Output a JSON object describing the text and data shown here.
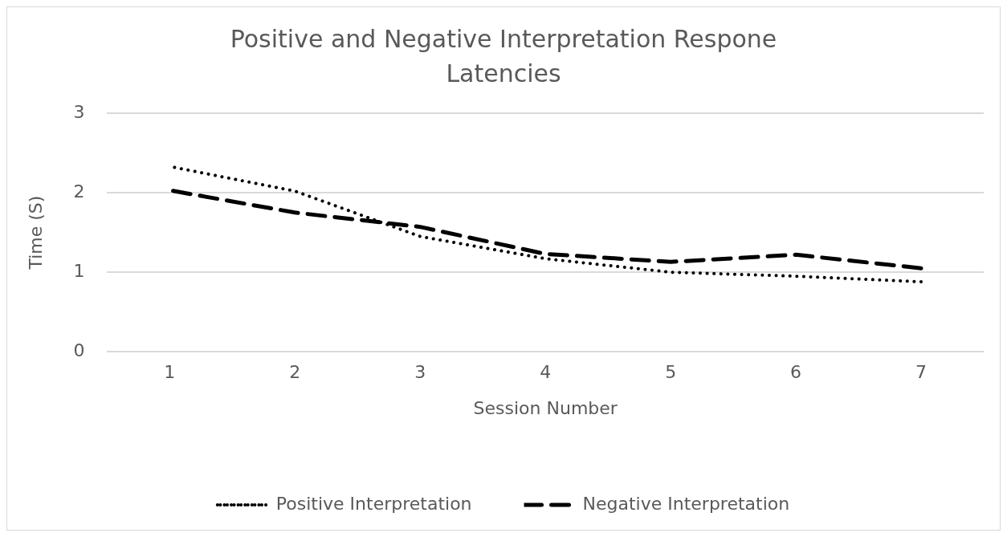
{
  "chart_data": {
    "type": "line",
    "title": "Positive and Negative Interpretation Respone Latencies",
    "xlabel": "Session Number",
    "ylabel": "Time (S)",
    "categories": [
      "1",
      "2",
      "3",
      "4",
      "5",
      "6",
      "7"
    ],
    "series": [
      {
        "name": "Positive Interpretation",
        "color": "#000000",
        "line_style": "dotted",
        "values": [
          2.33,
          2.02,
          1.45,
          1.17,
          1.0,
          0.95,
          0.88
        ]
      },
      {
        "name": "Negative Interpretation",
        "color": "#000000",
        "line_style": "dashed",
        "values": [
          2.03,
          1.75,
          1.57,
          1.23,
          1.13,
          1.22,
          1.05
        ]
      }
    ],
    "ylim": [
      0,
      3
    ],
    "yticks": [
      0,
      1,
      2,
      3
    ],
    "grid": "y",
    "legend": "bottom",
    "marker": "none"
  }
}
